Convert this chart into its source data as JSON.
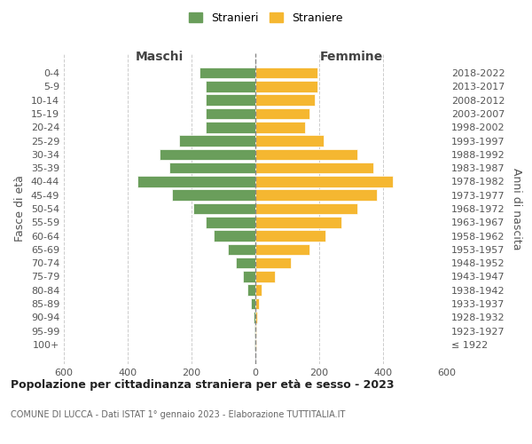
{
  "age_groups": [
    "100+",
    "95-99",
    "90-94",
    "85-89",
    "80-84",
    "75-79",
    "70-74",
    "65-69",
    "60-64",
    "55-59",
    "50-54",
    "45-49",
    "40-44",
    "35-39",
    "30-34",
    "25-29",
    "20-24",
    "15-19",
    "10-14",
    "5-9",
    "0-4"
  ],
  "birth_years": [
    "≤ 1922",
    "1923-1927",
    "1928-1932",
    "1933-1937",
    "1938-1942",
    "1943-1947",
    "1948-1952",
    "1953-1957",
    "1958-1962",
    "1963-1967",
    "1968-1972",
    "1973-1977",
    "1978-1982",
    "1983-1987",
    "1988-1992",
    "1993-1997",
    "1998-2002",
    "2003-2007",
    "2008-2012",
    "2013-2017",
    "2018-2022"
  ],
  "males": [
    2,
    2,
    5,
    15,
    25,
    40,
    60,
    85,
    130,
    155,
    195,
    260,
    370,
    270,
    300,
    240,
    155,
    155,
    155,
    155,
    175
  ],
  "females": [
    2,
    2,
    5,
    12,
    20,
    60,
    110,
    170,
    220,
    270,
    320,
    380,
    430,
    370,
    320,
    215,
    155,
    170,
    185,
    195,
    195
  ],
  "male_color": "#6a9e5b",
  "female_color": "#f5b731",
  "background_color": "#ffffff",
  "grid_color": "#cccccc",
  "title": "Popolazione per cittadinanza straniera per età e sesso - 2023",
  "subtitle": "COMUNE DI LUCCA - Dati ISTAT 1° gennaio 2023 - Elaborazione TUTTITALIA.IT",
  "xlabel_left": "Maschi",
  "xlabel_right": "Femmine",
  "ylabel_left": "Fasce di età",
  "ylabel_right": "Anni di nascita",
  "legend_male": "Stranieri",
  "legend_female": "Straniere",
  "xlim": 600
}
